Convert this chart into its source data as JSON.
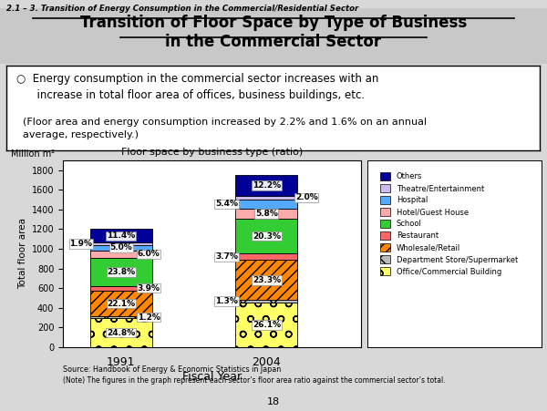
{
  "title_line1": "Transition of Floor Space by Type of Business",
  "title_line2": "in the Commercial Sector",
  "subtitle_header": "2.1 – 3. Transition of Energy Consumption in the Commercial/Residential Sector",
  "chart_title": "Floor space by business type (ratio)",
  "ylabel": "Total floor area",
  "xlabel": "Fiscal Year",
  "yunits": "Million m²",
  "years": [
    "1991",
    "2004"
  ],
  "bar_positions": [
    1,
    3
  ],
  "bar_width": 0.85,
  "ylim": [
    0,
    1900
  ],
  "yticks": [
    0,
    200,
    400,
    600,
    800,
    1000,
    1200,
    1400,
    1600,
    1800
  ],
  "categories": [
    "Office/Commercial Building",
    "Department Store/Supermarket",
    "Wholesale/Retail",
    "Restaurant",
    "School",
    "Hotel/Guest House",
    "Hospital",
    "Theatre/Entertainment",
    "Others"
  ],
  "colors": [
    "#FFFF66",
    "#BBBBBB",
    "#FF8800",
    "#FF6666",
    "#33CC33",
    "#FFAAAA",
    "#55AAFF",
    "#CCBBEE",
    "#000099"
  ],
  "hatches": [
    "o",
    "x",
    "///",
    "",
    "",
    "",
    "",
    "",
    ""
  ],
  "values_1991": [
    24.8,
    1.2,
    22.1,
    3.9,
    23.8,
    6.0,
    5.0,
    1.9,
    11.4
  ],
  "values_2004": [
    26.1,
    1.3,
    23.3,
    3.7,
    20.3,
    5.8,
    5.4,
    2.0,
    12.2
  ],
  "total_1991": 1200,
  "total_2004": 1750,
  "source_text": "Source: Handbook of Energy & Economic Statistics in Japan",
  "note_text": "(Note) The figures in the graph represent each sector’s floor area ratio against the commercial sector’s total.",
  "page_number": "18",
  "background_color": "#D8D8D8",
  "chart_bg": "#FFFFFF",
  "label_data_1991": [
    [
      0,
      "24.8%",
      0,
      0
    ],
    [
      1,
      "1.2%",
      0.38,
      0
    ],
    [
      2,
      "22.1%",
      0,
      0
    ],
    [
      3,
      "3.9%",
      0.38,
      0
    ],
    [
      4,
      "23.8%",
      0,
      0
    ],
    [
      5,
      "6.0%",
      0.38,
      0
    ],
    [
      6,
      "5.0%",
      0,
      0
    ],
    [
      7,
      "1.9%",
      -0.55,
      0
    ],
    [
      8,
      "11.4%",
      0,
      0
    ]
  ],
  "label_data_2004": [
    [
      0,
      "26.1%",
      0,
      0
    ],
    [
      1,
      "1.3%",
      -0.55,
      0
    ],
    [
      2,
      "23.3%",
      0,
      0
    ],
    [
      3,
      "3.7%",
      -0.55,
      0
    ],
    [
      4,
      "20.3%",
      0,
      0
    ],
    [
      5,
      "5.8%",
      0,
      0
    ],
    [
      6,
      "5.4%",
      -0.55,
      0
    ],
    [
      7,
      "2.0%",
      0.55,
      0
    ],
    [
      8,
      "12.2%",
      0,
      0
    ]
  ]
}
